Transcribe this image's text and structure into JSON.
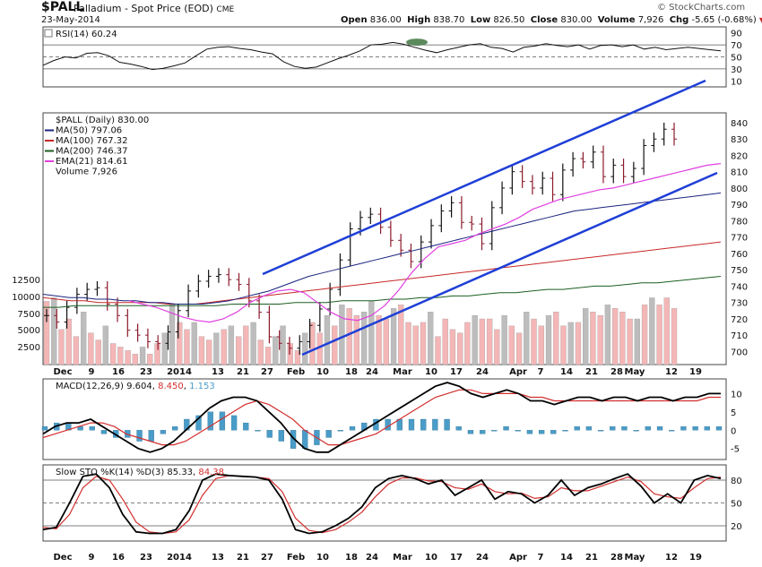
{
  "header": {
    "symbol": "$PALL",
    "name": "Palladium - Spot Price (EOD)",
    "exchange": "CME",
    "date": "23-May-2014",
    "open_label": "Open",
    "open": "836.00",
    "high_label": "High",
    "high": "838.70",
    "low_label": "Low",
    "low": "826.50",
    "close_label": "Close",
    "close": "830.00",
    "volume_label": "Volume",
    "volume": "7,926",
    "chg_label": "Chg",
    "chg": "-5.65 (-0.68%)",
    "watermark": "© StockCharts.com"
  },
  "colors": {
    "up_bar": "#111111",
    "down_bar": "#8b1a2b",
    "ma50": "#1a237e",
    "ma100": "#c62828",
    "ma200": "#1b5e20",
    "ema21": "#e040e0",
    "trendline": "#1f3fd6",
    "volume_up": "#bdbdbd",
    "volume_down": "#f4b6b6",
    "macd_line": "#000000",
    "signal_line": "#d32f2f",
    "histogram": "#4a9cc8",
    "rsi_fill": "#5c8a5c"
  },
  "chart_data": [
    {
      "type": "line",
      "panel": "RSI",
      "legend": "RSI(14) 60.24",
      "ylim": [
        0,
        100
      ],
      "y_ticks": [
        90,
        70,
        50,
        30,
        10
      ],
      "reference_lines": [
        70,
        50,
        30
      ],
      "series": [
        {
          "name": "RSI(14)",
          "values": [
            36,
            44,
            50,
            48,
            56,
            57,
            52,
            41,
            38,
            34,
            29,
            31,
            35,
            40,
            52,
            63,
            66,
            67,
            64,
            62,
            58,
            55,
            42,
            34,
            31,
            33,
            40,
            47,
            53,
            60,
            70,
            71,
            74,
            71,
            66,
            61,
            57,
            62,
            66,
            70,
            72,
            66,
            64,
            58,
            66,
            68,
            72,
            69,
            67,
            70,
            63,
            69,
            70,
            67,
            70,
            63,
            66,
            62,
            64,
            66,
            64,
            62,
            60
          ]
        }
      ]
    },
    {
      "type": "line",
      "panel": "price",
      "legend": "$PALL (Daily) 830.00",
      "x_tick_labels": [
        "Dec",
        "9",
        "16",
        "23",
        "2014",
        "13",
        "21",
        "27",
        "Feb",
        "10",
        "18",
        "24",
        "Mar",
        "10",
        "17",
        "24",
        "Apr",
        "7",
        "14",
        "21",
        "28",
        "May",
        "12",
        "19"
      ],
      "y_ticks": [
        840,
        830,
        820,
        810,
        800,
        790,
        780,
        770,
        760,
        750,
        740,
        730,
        720,
        710,
        700
      ],
      "ylim": [
        692,
        846
      ],
      "volume_axis_ticks": [
        "12500",
        "10000",
        "7500",
        "5000",
        "2500"
      ],
      "series": [
        {
          "name": "$PALL (Daily) 830.00",
          "values": [
            722,
            718,
            727,
            735,
            738,
            739,
            729,
            722,
            713,
            710,
            706,
            705,
            712,
            725,
            737,
            743,
            746,
            747,
            744,
            741,
            731,
            724,
            709,
            705,
            702,
            706,
            716,
            726,
            738,
            756,
            775,
            782,
            784,
            776,
            768,
            762,
            755,
            767,
            777,
            786,
            791,
            779,
            778,
            766,
            788,
            800,
            810,
            804,
            800,
            806,
            796,
            811,
            818,
            816,
            822,
            807,
            814,
            807,
            812,
            826,
            830,
            836,
            830
          ]
        },
        {
          "name": "MA(50) 797.06",
          "values": [
            735,
            734,
            733,
            733,
            732,
            732,
            731,
            731,
            730,
            730,
            729,
            729,
            729,
            730,
            731,
            733,
            735,
            737,
            740,
            743,
            746,
            748,
            750,
            752,
            754,
            756,
            758,
            760,
            762,
            764,
            766,
            768,
            770,
            772,
            774,
            776,
            778,
            780,
            782,
            784,
            786,
            787,
            788,
            789,
            790,
            791,
            792,
            793,
            794,
            795,
            796,
            797
          ]
        },
        {
          "name": "MA(100) 767.32",
          "values": [
            733,
            732,
            731,
            731,
            730,
            730,
            730,
            730,
            730,
            729,
            729,
            729,
            730,
            731,
            732,
            733,
            734,
            735,
            736,
            737,
            738,
            739,
            740,
            741,
            742,
            743,
            744,
            745,
            746,
            747,
            748,
            749,
            750,
            751,
            752,
            753,
            754,
            755,
            756,
            757,
            758,
            759,
            760,
            761,
            762,
            763,
            764,
            765,
            766,
            767
          ]
        },
        {
          "name": "MA(200) 746.37",
          "values": [
            727,
            727,
            728,
            728,
            728,
            728,
            728,
            728,
            728,
            728,
            728,
            728,
            729,
            729,
            729,
            729,
            730,
            730,
            730,
            731,
            731,
            731,
            732,
            732,
            733,
            733,
            734,
            734,
            735,
            736,
            736,
            737,
            738,
            738,
            739,
            740,
            740,
            741,
            742,
            742,
            743,
            744,
            745,
            746
          ]
        },
        {
          "name": "EMA(21) 814.61",
          "values": [
            731,
            729,
            727,
            724,
            721,
            719,
            718,
            720,
            724,
            730,
            734,
            737,
            738,
            736,
            730,
            724,
            720,
            719,
            722,
            728,
            737,
            748,
            757,
            764,
            766,
            768,
            772,
            775,
            778,
            782,
            787,
            790,
            793,
            795,
            797,
            799,
            800,
            802,
            804,
            806,
            808,
            810,
            812,
            814,
            815
          ]
        },
        {
          "name": "Volume 7,926",
          "values": [
            9000,
            9500,
            5000,
            6500,
            4000,
            7500,
            4500,
            3500,
            5500,
            3000,
            2500,
            2000,
            1500,
            2500,
            1500,
            3000,
            4500,
            8500,
            6000,
            5000,
            6000,
            4000,
            3500,
            4500,
            5000,
            5500,
            4000,
            5500,
            6000,
            3500,
            2500,
            4000,
            5500,
            3000,
            2000,
            4500,
            6000,
            4500,
            7000,
            5500,
            8500,
            8000,
            7000,
            7500,
            9000,
            7000,
            6500,
            8000,
            8500,
            6000,
            5500,
            6000,
            7500,
            4000,
            6500,
            5000,
            4500,
            6000,
            7000,
            6500,
            6500,
            5000,
            7000,
            5500,
            4500,
            7500,
            6500,
            5500,
            7000,
            7500,
            5500,
            6000,
            6000,
            8000,
            7500,
            7000,
            8500,
            8000,
            7500,
            6500,
            6500,
            8500,
            9500,
            8500,
            9500,
            8000
          ]
        }
      ]
    },
    {
      "type": "line",
      "panel": "MACD",
      "legend_prefix": "MACD(12,26,9)",
      "macd_value": "9.604",
      "signal_value": "8.450",
      "hist_value": "1.153",
      "ylim": [
        -8,
        14
      ],
      "y_ticks": [
        10,
        5,
        0,
        -5
      ],
      "series": [
        {
          "name": "MACD",
          "values": [
            -1,
            1,
            2,
            2,
            3,
            1,
            -1,
            -3,
            -5,
            -6,
            -5,
            -3,
            0,
            3,
            6,
            8,
            9,
            9,
            8,
            5,
            2,
            -2,
            -5,
            -6,
            -6,
            -4,
            -2,
            0,
            2,
            4,
            6,
            8,
            10,
            12,
            13,
            12,
            10,
            9,
            10,
            11,
            10,
            8,
            8,
            7,
            8,
            9,
            9,
            8,
            9,
            9,
            8,
            9,
            9,
            8,
            9,
            9,
            10,
            10
          ]
        },
        {
          "name": "Signal",
          "values": [
            -2,
            -1,
            0,
            1,
            2,
            2,
            1,
            -1,
            -2,
            -3,
            -4,
            -4,
            -3,
            -1,
            1,
            3,
            5,
            7,
            8,
            7,
            5,
            3,
            0,
            -2,
            -4,
            -4,
            -3,
            -2,
            -1,
            1,
            3,
            5,
            7,
            9,
            10,
            11,
            11,
            10,
            10,
            10,
            10,
            9,
            9,
            8,
            8,
            8,
            8,
            8,
            8,
            8,
            8,
            8,
            8,
            8,
            8,
            8,
            9,
            9
          ]
        }
      ]
    },
    {
      "type": "line",
      "panel": "Slow STO",
      "legend_prefix": "Slow STO %K(14) %D(3)",
      "k_value": "85.33",
      "d_value": "84.38",
      "ylim": [
        0,
        100
      ],
      "y_ticks": [
        80,
        50,
        20
      ],
      "reference_lines": [
        80,
        50,
        20
      ],
      "series": [
        {
          "name": "%K(14)",
          "values": [
            15,
            18,
            50,
            85,
            88,
            70,
            35,
            12,
            10,
            10,
            15,
            40,
            80,
            88,
            86,
            85,
            84,
            80,
            55,
            15,
            10,
            12,
            20,
            30,
            45,
            70,
            82,
            86,
            82,
            75,
            80,
            60,
            70,
            80,
            55,
            65,
            62,
            50,
            60,
            80,
            60,
            70,
            75,
            82,
            88,
            72,
            50,
            62,
            50,
            80,
            86,
            82
          ]
        },
        {
          "name": "%D(3)",
          "values": [
            18,
            16,
            35,
            70,
            85,
            80,
            55,
            25,
            12,
            10,
            12,
            28,
            60,
            82,
            86,
            85,
            84,
            82,
            65,
            30,
            14,
            11,
            15,
            25,
            38,
            58,
            75,
            83,
            83,
            79,
            78,
            70,
            68,
            75,
            65,
            62,
            63,
            56,
            58,
            70,
            66,
            66,
            72,
            78,
            84,
            78,
            62,
            58,
            56,
            70,
            82,
            84
          ]
        }
      ]
    }
  ],
  "legends": {
    "rsi": "RSI(14) 60.24",
    "price": "$PALL (Daily) 830.00",
    "ma50": "MA(50) 797.06",
    "ma100": "MA(100) 767.32",
    "ma200": "MA(200) 746.37",
    "ema21": "EMA(21) 814.61",
    "volume": "Volume 7,926"
  }
}
